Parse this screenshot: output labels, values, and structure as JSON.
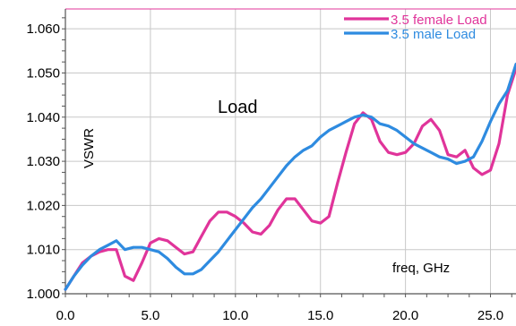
{
  "chart_data": {
    "type": "line",
    "title": "",
    "xlabel": "freq, GHz",
    "ylabel": "VSWR",
    "annotation": "Load",
    "xlim": [
      0.0,
      26.5
    ],
    "ylim": [
      1.0,
      1.0645
    ],
    "x_ticks": [
      0.0,
      5.0,
      10.0,
      15.0,
      20.0,
      25.0
    ],
    "x_tick_labels": [
      "0.0",
      "5.0",
      "10.0",
      "15.0",
      "20.0",
      "25.0"
    ],
    "y_ticks": [
      1.0,
      1.01,
      1.02,
      1.03,
      1.04,
      1.05,
      1.06
    ],
    "y_tick_labels": [
      "1.000",
      "1.010",
      "1.020",
      "1.030",
      "1.040",
      "1.050",
      "1.060"
    ],
    "grid": true,
    "legend_position": "top-right",
    "series": [
      {
        "name": "3.5 female Load",
        "color": "#e0349a",
        "x": [
          0.0,
          0.5,
          1.0,
          1.5,
          2.0,
          2.5,
          3.0,
          3.5,
          4.0,
          4.5,
          5.0,
          5.5,
          6.0,
          6.5,
          7.0,
          7.5,
          8.0,
          8.5,
          9.0,
          9.5,
          10.0,
          10.5,
          11.0,
          11.5,
          12.0,
          12.5,
          13.0,
          13.5,
          14.0,
          14.5,
          15.0,
          15.5,
          16.0,
          16.5,
          17.0,
          17.5,
          18.0,
          18.5,
          19.0,
          19.5,
          20.0,
          20.5,
          21.0,
          21.5,
          22.0,
          22.5,
          23.0,
          23.5,
          24.0,
          24.5,
          25.0,
          25.5,
          26.0,
          26.5
        ],
        "values": [
          1.001,
          1.004,
          1.007,
          1.0085,
          1.0095,
          1.01,
          1.01,
          1.004,
          1.003,
          1.007,
          1.0115,
          1.0125,
          1.012,
          1.0105,
          1.009,
          1.0095,
          1.013,
          1.0165,
          1.0185,
          1.0185,
          1.0175,
          1.016,
          1.014,
          1.0135,
          1.0155,
          1.019,
          1.0215,
          1.0215,
          1.019,
          1.0165,
          1.016,
          1.0175,
          1.025,
          1.032,
          1.0385,
          1.041,
          1.0395,
          1.0345,
          1.032,
          1.0315,
          1.032,
          1.034,
          1.038,
          1.0395,
          1.037,
          1.0315,
          1.031,
          1.0325,
          1.0285,
          1.027,
          1.028,
          1.034,
          1.045,
          1.051
        ]
      },
      {
        "name": "3.5 male Load",
        "color": "#2e8be0",
        "x": [
          0.0,
          0.5,
          1.0,
          1.5,
          2.0,
          2.5,
          3.0,
          3.5,
          4.0,
          4.5,
          5.0,
          5.5,
          6.0,
          6.5,
          7.0,
          7.5,
          8.0,
          8.5,
          9.0,
          9.5,
          10.0,
          10.5,
          11.0,
          11.5,
          12.0,
          12.5,
          13.0,
          13.5,
          14.0,
          14.5,
          15.0,
          15.5,
          16.0,
          16.5,
          17.0,
          17.5,
          18.0,
          18.5,
          19.0,
          19.5,
          20.0,
          20.5,
          21.0,
          21.5,
          22.0,
          22.5,
          23.0,
          23.5,
          24.0,
          24.5,
          25.0,
          25.5,
          26.0,
          26.5
        ],
        "values": [
          1.001,
          1.004,
          1.0065,
          1.0085,
          1.01,
          1.011,
          1.012,
          1.01,
          1.0105,
          1.0105,
          1.01,
          1.0095,
          1.008,
          1.006,
          1.0045,
          1.0045,
          1.0055,
          1.0075,
          1.0095,
          1.012,
          1.0145,
          1.017,
          1.0195,
          1.0215,
          1.024,
          1.0265,
          1.029,
          1.031,
          1.0325,
          1.0335,
          1.0355,
          1.037,
          1.038,
          1.039,
          1.04,
          1.0405,
          1.04,
          1.0385,
          1.038,
          1.037,
          1.0355,
          1.034,
          1.033,
          1.032,
          1.031,
          1.0305,
          1.0295,
          1.03,
          1.031,
          1.0345,
          1.039,
          1.043,
          1.046,
          1.052
        ]
      }
    ]
  }
}
